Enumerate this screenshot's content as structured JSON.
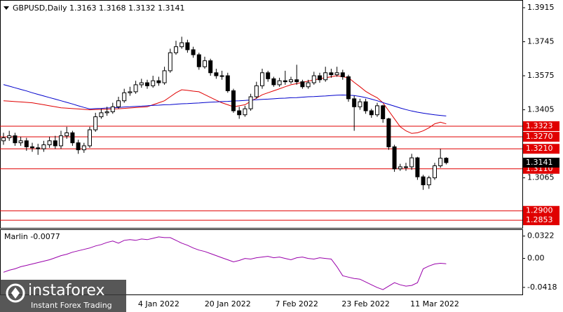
{
  "chart_data": [
    {
      "type": "candlestick",
      "title": "GBPUSD,Daily  1.3163 1.3168 1.3132 1.3141",
      "categories": [
        null,
        null,
        null,
        null,
        null,
        null,
        null,
        null,
        null,
        null,
        null,
        null,
        null,
        null,
        null,
        null,
        null,
        null,
        null,
        null,
        null,
        null,
        null,
        null,
        null,
        null,
        null,
        "4 Jan 2022",
        null,
        null,
        null,
        null,
        null,
        null,
        null,
        null,
        null,
        null,
        null,
        "20 Jan 2022",
        null,
        null,
        null,
        null,
        null,
        null,
        null,
        null,
        null,
        null,
        null,
        "7 Feb 2022",
        null,
        null,
        null,
        null,
        null,
        null,
        null,
        null,
        null,
        null,
        null,
        "23 Feb 2022",
        null,
        null,
        null,
        null,
        null,
        null,
        null,
        null,
        null,
        null,
        null,
        "11 Mar 2022",
        null,
        null
      ],
      "open": [
        1.325,
        1.3265,
        1.3275,
        1.324,
        1.325,
        1.322,
        1.3215,
        1.321,
        1.323,
        1.325,
        1.3225,
        1.3275,
        1.329,
        1.324,
        1.3205,
        1.3225,
        1.3305,
        1.337,
        1.339,
        1.3395,
        1.342,
        1.345,
        1.349,
        1.3495,
        1.353,
        1.354,
        1.3525,
        1.355,
        1.354,
        1.36,
        1.369,
        1.372,
        1.374,
        1.3705,
        1.368,
        1.362,
        1.365,
        1.359,
        1.3575,
        1.3575,
        1.35,
        1.34,
        1.338,
        1.341,
        1.347,
        1.3525,
        1.359,
        1.356,
        1.353,
        1.355,
        1.3545,
        1.3555,
        1.3545,
        1.352,
        1.354,
        1.3575,
        1.3555,
        1.359,
        1.358,
        1.359,
        1.357,
        1.346,
        1.342,
        1.3445,
        1.34,
        1.338,
        1.3425,
        1.336,
        1.322,
        1.311,
        1.312,
        1.312,
        1.3165,
        1.307,
        1.303,
        1.3065,
        1.3125,
        1.3163
      ],
      "high": [
        1.329,
        1.33,
        1.329,
        1.327,
        1.3265,
        1.324,
        1.3235,
        1.325,
        1.327,
        1.3275,
        1.33,
        1.332,
        1.33,
        1.3255,
        1.324,
        1.332,
        1.339,
        1.341,
        1.342,
        1.344,
        1.347,
        1.351,
        1.352,
        1.355,
        1.356,
        1.3555,
        1.3575,
        1.357,
        1.362,
        1.371,
        1.375,
        1.377,
        1.3755,
        1.372,
        1.369,
        1.367,
        1.366,
        1.361,
        1.36,
        1.359,
        1.351,
        1.342,
        1.3425,
        1.3485,
        1.3545,
        1.361,
        1.36,
        1.357,
        1.3565,
        1.36,
        1.357,
        1.363,
        1.3555,
        1.3555,
        1.3595,
        1.359,
        1.362,
        1.361,
        1.362,
        1.3605,
        1.358,
        1.3475,
        1.346,
        1.346,
        1.341,
        1.344,
        1.343,
        1.3365,
        1.323,
        1.3135,
        1.314,
        1.3185,
        1.317,
        1.308,
        1.3075,
        1.314,
        1.321,
        1.3168
      ],
      "low": [
        1.323,
        1.325,
        1.3225,
        1.3225,
        1.32,
        1.3195,
        1.318,
        1.3195,
        1.3215,
        1.321,
        1.321,
        1.326,
        1.3225,
        1.3185,
        1.319,
        1.3215,
        1.3295,
        1.336,
        1.3375,
        1.3385,
        1.341,
        1.344,
        1.3475,
        1.3485,
        1.3515,
        1.351,
        1.3515,
        1.3525,
        1.353,
        1.359,
        1.368,
        1.371,
        1.369,
        1.3665,
        1.3605,
        1.361,
        1.3575,
        1.356,
        1.3555,
        1.349,
        1.339,
        1.336,
        1.337,
        1.34,
        1.346,
        1.351,
        1.3545,
        1.352,
        1.352,
        1.353,
        1.3535,
        1.353,
        1.351,
        1.351,
        1.353,
        1.354,
        1.3545,
        1.3565,
        1.357,
        1.3555,
        1.3445,
        1.33,
        1.3405,
        1.3385,
        1.3365,
        1.337,
        1.334,
        1.3205,
        1.3095,
        1.31,
        1.31,
        1.3105,
        1.3055,
        1.3005,
        1.301,
        1.3055,
        1.3115,
        1.3132
      ],
      "close": [
        1.3265,
        1.3275,
        1.324,
        1.325,
        1.322,
        1.3215,
        1.321,
        1.323,
        1.325,
        1.3225,
        1.3275,
        1.329,
        1.324,
        1.3205,
        1.3225,
        1.3305,
        1.337,
        1.339,
        1.3395,
        1.342,
        1.345,
        1.349,
        1.3495,
        1.353,
        1.354,
        1.3525,
        1.355,
        1.354,
        1.36,
        1.369,
        1.372,
        1.374,
        1.3705,
        1.368,
        1.362,
        1.365,
        1.359,
        1.3575,
        1.3575,
        1.35,
        1.34,
        1.338,
        1.341,
        1.347,
        1.3525,
        1.359,
        1.356,
        1.353,
        1.355,
        1.3545,
        1.3555,
        1.3545,
        1.352,
        1.354,
        1.3575,
        1.3555,
        1.359,
        1.358,
        1.359,
        1.357,
        1.346,
        1.342,
        1.3445,
        1.34,
        1.338,
        1.3425,
        1.336,
        1.322,
        1.311,
        1.312,
        1.312,
        1.3165,
        1.307,
        1.303,
        1.3065,
        1.3125,
        1.3163,
        1.3141
      ],
      "lines": [
        {
          "color": "#e00000",
          "values": [
            1.345,
            1.3448,
            1.3446,
            1.3444,
            1.3442,
            1.344,
            1.3435,
            1.343,
            1.3425,
            1.342,
            1.3415,
            1.3413,
            1.3411,
            1.3409,
            1.3407,
            1.3405,
            1.3406,
            1.3407,
            1.3408,
            1.3409,
            1.341,
            1.3412,
            1.3414,
            1.3416,
            1.3418,
            1.342,
            1.343,
            1.344,
            1.345,
            1.347,
            1.349,
            1.3505,
            1.3502,
            1.3498,
            1.3495,
            1.3481,
            1.3467,
            1.3453,
            1.344,
            1.343,
            1.342,
            1.3425,
            1.343,
            1.3447,
            1.3463,
            1.348,
            1.349,
            1.35,
            1.351,
            1.352,
            1.353,
            1.3536,
            1.3542,
            1.3548,
            1.3554,
            1.356,
            1.3565,
            1.357,
            1.3575,
            1.357,
            1.3565,
            1.3542,
            1.352,
            1.3497,
            1.348,
            1.3465,
            1.344,
            1.34,
            1.336,
            1.332,
            1.33,
            1.3287,
            1.329,
            1.33,
            1.3315,
            1.3335,
            1.3343,
            1.3335
          ]
        },
        {
          "color": "#0000cc",
          "values": [
            1.3531,
            1.3523,
            1.3515,
            1.3507,
            1.3499,
            1.349,
            1.3482,
            1.3474,
            1.3466,
            1.3458,
            1.345,
            1.3442,
            1.3434,
            1.3425,
            1.3417,
            1.3409,
            1.3411,
            1.3412,
            1.3414,
            1.3415,
            1.3417,
            1.3419,
            1.342,
            1.3422,
            1.3423,
            1.3425,
            1.3427,
            1.3428,
            1.343,
            1.3431,
            1.3433,
            1.3435,
            1.3436,
            1.3438,
            1.3439,
            1.3441,
            1.3443,
            1.3444,
            1.3446,
            1.3447,
            1.3449,
            1.345,
            1.3452,
            1.3454,
            1.3455,
            1.3457,
            1.3458,
            1.346,
            1.3462,
            1.3463,
            1.3465,
            1.3466,
            1.3468,
            1.347,
            1.3471,
            1.3473,
            1.3474,
            1.3476,
            1.3478,
            1.3479,
            1.3478,
            1.3476,
            1.3472,
            1.3466,
            1.3458,
            1.345,
            1.3441,
            1.3432,
            1.3423,
            1.3414,
            1.3406,
            1.3399,
            1.3393,
            1.3388,
            1.3384,
            1.338,
            1.3377,
            1.3374
          ]
        }
      ],
      "levels": [
        1.3323,
        {
          "value": 1.327,
          "label": "1.3270"
        },
        {
          "value": 1.321,
          "label": "1.3210"
        },
        {
          "value": 1.311,
          "label": "1.3110"
        },
        {
          "value": 1.29,
          "label": "1.2900"
        },
        1.2853
      ],
      "level_color": "#e00000",
      "ylim": [
        1.2815,
        1.395
      ],
      "yticks": [
        1.3915,
        1.3745,
        1.3575,
        1.3405,
        1.3065
      ]
    },
    {
      "type": "line",
      "title": "Marlin -0.0077",
      "color": "#9900aa",
      "values": [
        -0.02,
        -0.017,
        -0.015,
        -0.012,
        -0.01,
        -0.008,
        -0.006,
        -0.004,
        -0.002,
        0.001,
        0.004,
        0.006,
        0.009,
        0.011,
        0.013,
        0.015,
        0.018,
        0.02,
        0.023,
        0.025,
        0.022,
        0.026,
        0.027,
        0.026,
        0.028,
        0.027,
        0.029,
        0.031,
        0.03,
        0.03,
        0.026,
        0.022,
        0.019,
        0.015,
        0.012,
        0.01,
        0.007,
        0.004,
        0.001,
        -0.002,
        -0.005,
        -0.003,
        0.0,
        -0.001,
        0.001,
        0.002,
        0.003,
        0.001,
        0.002,
        0.0,
        -0.002,
        0.001,
        0.002,
        0.0,
        -0.001,
        0.001,
        0.0,
        -0.001,
        -0.012,
        -0.025,
        -0.027,
        -0.029,
        -0.03,
        -0.034,
        -0.038,
        -0.042,
        -0.045,
        -0.04,
        -0.035,
        -0.038,
        -0.04,
        -0.039,
        -0.035,
        -0.015,
        -0.011,
        -0.008,
        -0.007,
        -0.0077
      ],
      "ylim": [
        -0.052,
        0.041
      ],
      "yticks": [
        0.0322,
        {
          "value": 0,
          "label": "0.00"
        },
        -0.0418
      ]
    }
  ],
  "watermark": {
    "brand": "instaforex",
    "tagline": "Instant Forex Trading"
  }
}
